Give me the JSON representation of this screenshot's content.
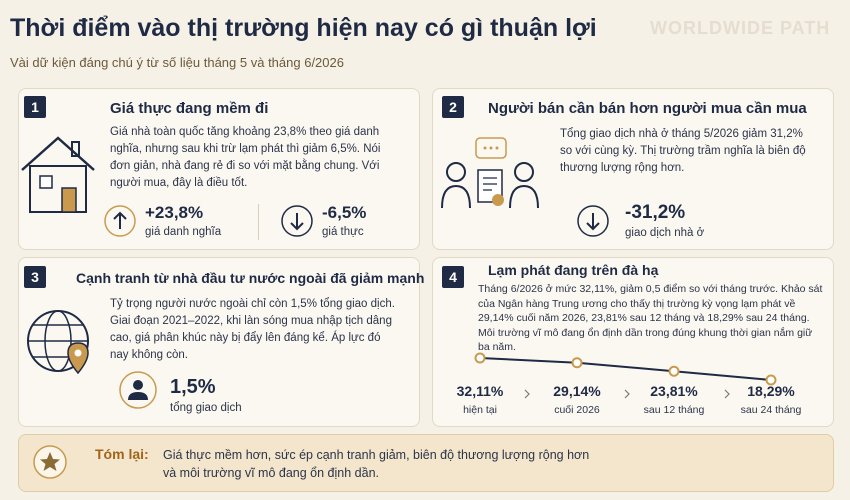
{
  "header": {
    "title": "Thời điểm vào thị trường hiện nay có gì thuận lợi",
    "subtitle": "Vài dữ kiện đáng chú ý từ số liệu tháng 5 và tháng 6/2026",
    "watermark": "WORLDWIDE PATH"
  },
  "cards": [
    {
      "number": "1",
      "title": "Giá thực đang mềm đi",
      "body": "Giá nhà toàn quốc tăng khoảng 23,8% theo giá danh nghĩa, nhưng sau khi trừ lạm phát thì giảm 6,5%. Nói đơn giản, nhà đang rẻ đi so với mặt bằng chung. Với người mua, đây là điều tốt.",
      "stats": [
        {
          "value": "+23,8%",
          "label": "giá danh nghĩa"
        },
        {
          "value": "-6,5%",
          "label": "giá thực"
        }
      ]
    },
    {
      "number": "2",
      "title": "Người bán cần bán hơn người mua cần mua",
      "body": "Tổng giao dịch nhà ở tháng 5/2026 giảm 31,2% so với cùng kỳ. Thị trường trầm nghĩa là biên độ thương lượng rộng hơn.",
      "stats": [
        {
          "value": "-31,2%",
          "label": "giao dịch nhà ở"
        }
      ]
    },
    {
      "number": "3",
      "title": "Cạnh tranh từ nhà đầu tư nước ngoài đã giảm mạnh",
      "body": "Tỷ trọng người nước ngoài chỉ còn 1,5% tổng giao dịch. Giai đoạn 2021–2022, khi làn sóng mua nhập tịch dâng cao, giá phân khúc này bị đẩy lên đáng kể. Áp lực đó nay không còn.",
      "stats": [
        {
          "value": "1,5%",
          "label": "tổng giao dịch"
        }
      ]
    },
    {
      "number": "4",
      "title": "Lạm phát đang trên đà hạ",
      "body": "Tháng 6/2026 ở mức 32,11%, giảm 0,5 điểm so với tháng trước. Khảo sát của Ngân hàng Trung ương cho thấy thị trường kỳ vọng lạm phát về 29,14% cuối năm 2026, 23,81% sau 12 tháng và 18,29% sau 24 tháng. Môi trường vĩ mô đang ổn định dần trong đúng khung thời gian nắm giữ ba năm.",
      "timeline": {
        "values": [
          32.11,
          29.14,
          23.81,
          18.29
        ],
        "value_labels": [
          "32,11%",
          "29,14%",
          "23,81%",
          "18,29%"
        ],
        "labels": [
          "hiện tại",
          "cuối 2026",
          "sau 12 tháng",
          "sau 24 tháng"
        ]
      }
    }
  ],
  "summary": {
    "label": "Tóm lại:",
    "text": "Giá thực mềm hơn, sức ép cạnh tranh giảm, biên độ thương lượng rộng hơn và môi trường vĩ mô đang ổn định dần."
  }
}
